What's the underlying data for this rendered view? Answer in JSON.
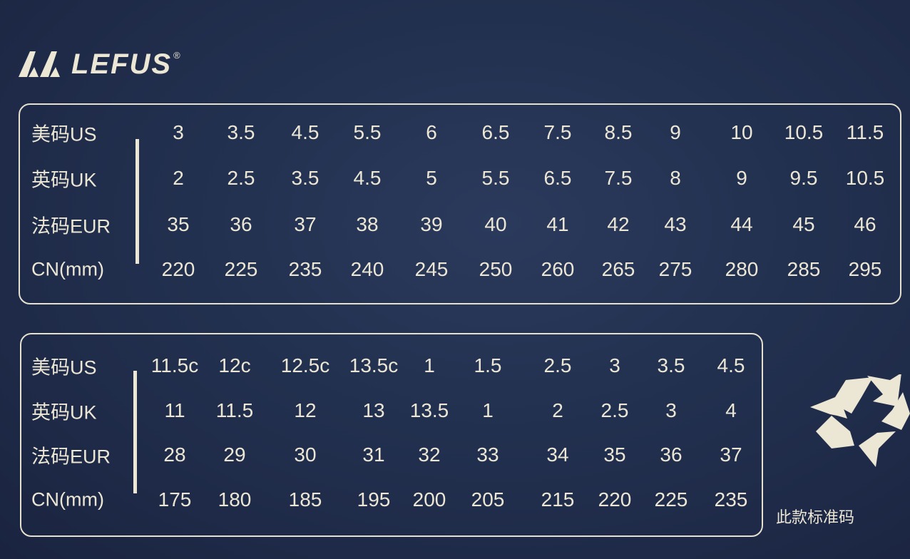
{
  "brand": {
    "name": "LEFUS",
    "registered": "®"
  },
  "colors": {
    "background": "#22304f",
    "ink": "#ece6d4"
  },
  "tables": [
    {
      "rows": [
        {
          "label": "美码US",
          "values": [
            "3",
            "3.5",
            "4.5",
            "5.5",
            "6",
            "6.5",
            "7.5",
            "8.5",
            "9",
            "10",
            "10.5",
            "11.5"
          ]
        },
        {
          "label": "英码UK",
          "values": [
            "2",
            "2.5",
            "3.5",
            "4.5",
            "5",
            "5.5",
            "6.5",
            "7.5",
            "8",
            "9",
            "9.5",
            "10.5"
          ]
        },
        {
          "label": "法码EUR",
          "values": [
            "35",
            "36",
            "37",
            "38",
            "39",
            "40",
            "41",
            "42",
            "43",
            "44",
            "45",
            "46"
          ]
        },
        {
          "label": "CN(mm)",
          "values": [
            "220",
            "225",
            "235",
            "240",
            "245",
            "250",
            "260",
            "265",
            "275",
            "280",
            "285",
            "295"
          ]
        }
      ]
    },
    {
      "rows": [
        {
          "label": "美码US",
          "values": [
            "11.5c",
            "12c",
            "12.5c",
            "13.5c",
            "1",
            "1.5",
            "2.5",
            "3",
            "3.5",
            "4.5"
          ]
        },
        {
          "label": "英码UK",
          "values": [
            "11",
            "11.5",
            "12",
            "13",
            "13.5",
            "1",
            "2",
            "2.5",
            "3",
            "4"
          ]
        },
        {
          "label": "法码EUR",
          "values": [
            "28",
            "29",
            "30",
            "31",
            "32",
            "33",
            "34",
            "35",
            "36",
            "37"
          ]
        },
        {
          "label": "CN(mm)",
          "values": [
            "175",
            "180",
            "185",
            "195",
            "200",
            "205",
            "215",
            "220",
            "225",
            "235"
          ]
        }
      ]
    }
  ],
  "recycle_icon": "recycle-icon",
  "note": "此款标准码"
}
